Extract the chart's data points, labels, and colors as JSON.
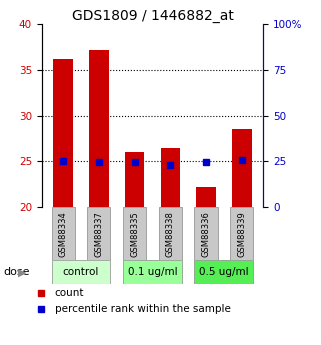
{
  "title": "GDS1809 / 1446882_at",
  "samples": [
    "GSM88334",
    "GSM88337",
    "GSM88335",
    "GSM88338",
    "GSM88336",
    "GSM88339"
  ],
  "bar_bottoms": [
    20,
    20,
    20,
    20,
    20,
    20
  ],
  "bar_tops": [
    36.2,
    37.2,
    26.0,
    26.4,
    22.2,
    28.5
  ],
  "percentile_values": [
    25.3,
    24.7,
    24.7,
    23.2,
    24.5,
    25.8
  ],
  "ylim_left": [
    20,
    40
  ],
  "ylim_right": [
    0,
    100
  ],
  "yticks_left": [
    20,
    25,
    30,
    35,
    40
  ],
  "yticks_right": [
    0,
    25,
    50,
    75,
    100
  ],
  "ytick_labels_right": [
    "0",
    "25",
    "50",
    "75",
    "100%"
  ],
  "hlines": [
    25,
    30,
    35
  ],
  "bar_color": "#cc0000",
  "marker_color": "#0000cc",
  "sample_box_color": "#c8c8c8",
  "groups": [
    {
      "label": "control",
      "indices": [
        0,
        1
      ],
      "color": "#ccffcc"
    },
    {
      "label": "0.1 ug/ml",
      "indices": [
        2,
        3
      ],
      "color": "#99ff99"
    },
    {
      "label": "0.5 ug/ml",
      "indices": [
        4,
        5
      ],
      "color": "#55ee55"
    }
  ],
  "dose_label": "dose",
  "legend_count_label": "count",
  "legend_pct_label": "percentile rank within the sample",
  "title_fontsize": 10,
  "axis_left_color": "#cc0000",
  "axis_right_color": "#0000cc",
  "tick_label_fontsize": 7.5,
  "bar_width": 0.55
}
